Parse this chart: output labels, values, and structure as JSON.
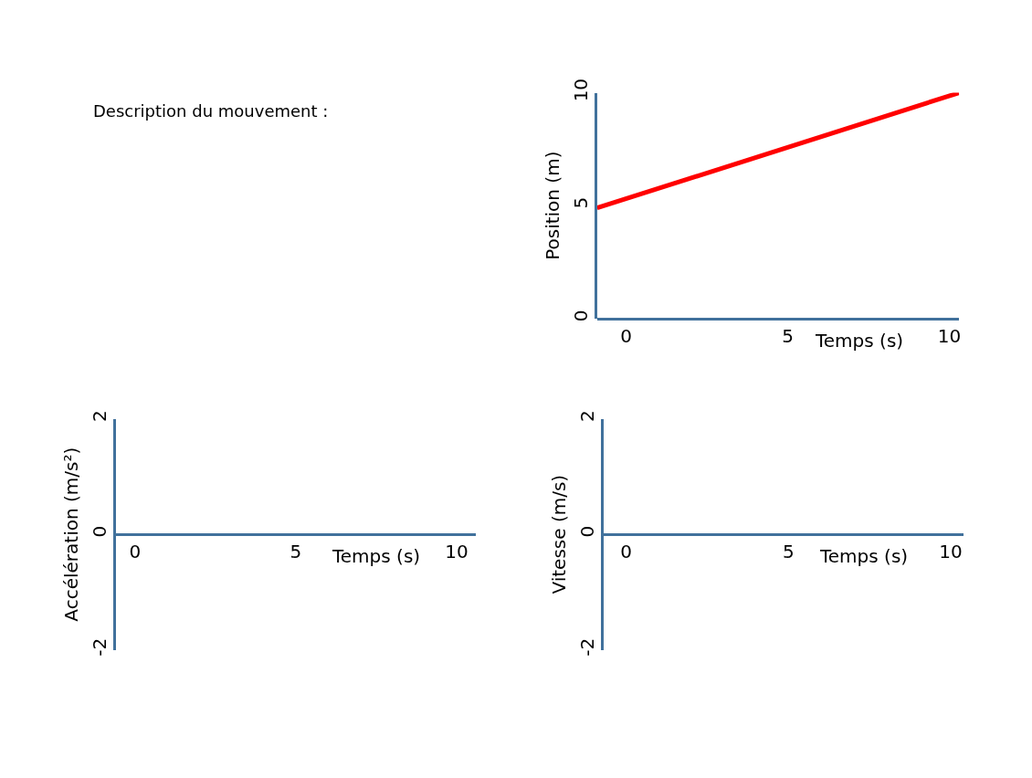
{
  "chart_data": [
    {
      "type": "line",
      "xlabel": "Temps (s)",
      "ylabel": "Position (m)",
      "xlim": [
        -0.9,
        10.3
      ],
      "xticks": [
        0,
        5,
        10
      ],
      "ylim": [
        0,
        10
      ],
      "yticks": [
        0,
        5,
        10
      ],
      "marker": "none",
      "line_style": "solid",
      "annotations": [
        "Description du mouvement :"
      ],
      "series": [
        {
          "x": [
            -0.9,
            10.3
          ],
          "values": [
            4.9,
            10
          ],
          "color": "#ff0000"
        }
      ]
    },
    {
      "type": "line",
      "xlabel": "Temps (s)",
      "ylabel": "Accélération (m/s²)",
      "xlim": [
        -0.6,
        10.6
      ],
      "xticks": [
        0,
        5,
        10
      ],
      "ylim": [
        -2,
        2
      ],
      "yticks": [
        -2,
        0,
        2
      ]
    },
    {
      "type": "line",
      "xlabel": "Temps (s)",
      "ylabel": "Vitesse (m/s)",
      "xlim": [
        -0.7,
        10.4
      ],
      "xticks": [
        0,
        5,
        10
      ],
      "ylim": [
        -2,
        2
      ],
      "yticks": [
        -2,
        0,
        2
      ]
    }
  ]
}
